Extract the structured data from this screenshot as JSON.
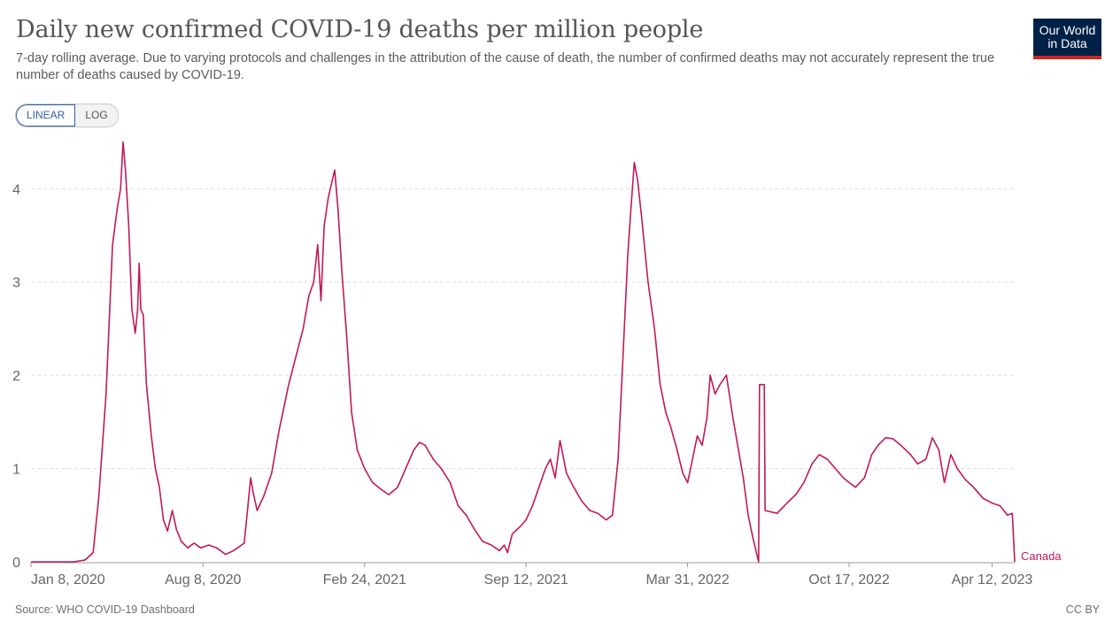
{
  "header": {
    "title": "Daily new confirmed COVID-19 deaths per million people",
    "subtitle": "7-day rolling average. Due to varying protocols and challenges in the attribution of the cause of death, the number of confirmed deaths may not accurately represent the true number of deaths caused by COVID-19.",
    "logo_line1": "Our World",
    "logo_line2": "in Data"
  },
  "controls": {
    "linear_label": "LINEAR",
    "log_label": "LOG",
    "active": "linear"
  },
  "footer": {
    "source": "Source: WHO COVID-19 Dashboard",
    "license": "CC BY"
  },
  "colors": {
    "series": "#c2185b",
    "grid": "#dddddd",
    "axis": "#999999"
  },
  "chart_data": {
    "type": "line",
    "title": "Daily new confirmed COVID-19 deaths per million people",
    "xlabel": "",
    "ylabel": "",
    "ylim": [
      0,
      4.6
    ],
    "xlim": [
      "2020-01-08",
      "2023-05-10"
    ],
    "y_ticks": [
      0,
      1,
      2,
      3,
      4
    ],
    "x_ticks": [
      "2020-01-08",
      "2020-08-08",
      "2021-02-24",
      "2021-09-12",
      "2022-03-31",
      "2022-10-17",
      "2023-04-12"
    ],
    "x_tick_labels": [
      "Jan 8, 2020",
      "Aug 8, 2020",
      "Feb 24, 2021",
      "Sep 12, 2021",
      "Mar 31, 2022",
      "Oct 17, 2022",
      "Apr 12, 2023"
    ],
    "grid": "horizontal dashed",
    "series": [
      {
        "name": "Canada",
        "points": [
          [
            "2020-01-08",
            0
          ],
          [
            "2020-03-01",
            0
          ],
          [
            "2020-03-15",
            0.02
          ],
          [
            "2020-03-25",
            0.1
          ],
          [
            "2020-04-01",
            0.7
          ],
          [
            "2020-04-10",
            1.8
          ],
          [
            "2020-04-18",
            3.4
          ],
          [
            "2020-04-24",
            3.8
          ],
          [
            "2020-04-28",
            4.0
          ],
          [
            "2020-05-01",
            4.5
          ],
          [
            "2020-05-04",
            4.2
          ],
          [
            "2020-05-08",
            3.6
          ],
          [
            "2020-05-12",
            2.7
          ],
          [
            "2020-05-16",
            2.45
          ],
          [
            "2020-05-19",
            2.7
          ],
          [
            "2020-05-21",
            3.2
          ],
          [
            "2020-05-23",
            2.7
          ],
          [
            "2020-05-26",
            2.65
          ],
          [
            "2020-05-30",
            1.9
          ],
          [
            "2020-06-05",
            1.35
          ],
          [
            "2020-06-10",
            1.0
          ],
          [
            "2020-06-15",
            0.8
          ],
          [
            "2020-06-20",
            0.45
          ],
          [
            "2020-06-25",
            0.33
          ],
          [
            "2020-07-01",
            0.55
          ],
          [
            "2020-07-06",
            0.35
          ],
          [
            "2020-07-12",
            0.22
          ],
          [
            "2020-07-20",
            0.15
          ],
          [
            "2020-07-28",
            0.2
          ],
          [
            "2020-08-05",
            0.15
          ],
          [
            "2020-08-15",
            0.18
          ],
          [
            "2020-08-25",
            0.15
          ],
          [
            "2020-09-05",
            0.08
          ],
          [
            "2020-09-15",
            0.12
          ],
          [
            "2020-09-28",
            0.2
          ],
          [
            "2020-10-02",
            0.55
          ],
          [
            "2020-10-06",
            0.9
          ],
          [
            "2020-10-09",
            0.75
          ],
          [
            "2020-10-14",
            0.55
          ],
          [
            "2020-10-22",
            0.7
          ],
          [
            "2020-11-01",
            0.95
          ],
          [
            "2020-11-10",
            1.4
          ],
          [
            "2020-11-22",
            1.9
          ],
          [
            "2020-12-01",
            2.2
          ],
          [
            "2020-12-10",
            2.5
          ],
          [
            "2020-12-17",
            2.85
          ],
          [
            "2020-12-23",
            3.0
          ],
          [
            "2020-12-28",
            3.4
          ],
          [
            "2021-01-01",
            2.8
          ],
          [
            "2021-01-05",
            3.6
          ],
          [
            "2021-01-10",
            3.9
          ],
          [
            "2021-01-14",
            4.05
          ],
          [
            "2021-01-18",
            4.2
          ],
          [
            "2021-01-22",
            3.8
          ],
          [
            "2021-01-27",
            3.1
          ],
          [
            "2021-02-02",
            2.4
          ],
          [
            "2021-02-08",
            1.6
          ],
          [
            "2021-02-15",
            1.2
          ],
          [
            "2021-02-24",
            1.0
          ],
          [
            "2021-03-06",
            0.85
          ],
          [
            "2021-03-16",
            0.78
          ],
          [
            "2021-03-26",
            0.72
          ],
          [
            "2021-04-06",
            0.8
          ],
          [
            "2021-04-16",
            1.0
          ],
          [
            "2021-04-26",
            1.2
          ],
          [
            "2021-05-03",
            1.28
          ],
          [
            "2021-05-10",
            1.25
          ],
          [
            "2021-05-20",
            1.1
          ],
          [
            "2021-05-30",
            1.0
          ],
          [
            "2021-06-10",
            0.85
          ],
          [
            "2021-06-20",
            0.6
          ],
          [
            "2021-06-30",
            0.5
          ],
          [
            "2021-07-10",
            0.35
          ],
          [
            "2021-07-20",
            0.22
          ],
          [
            "2021-07-31",
            0.18
          ],
          [
            "2021-08-10",
            0.12
          ],
          [
            "2021-08-16",
            0.18
          ],
          [
            "2021-08-20",
            0.1
          ],
          [
            "2021-08-26",
            0.3
          ],
          [
            "2021-09-05",
            0.38
          ],
          [
            "2021-09-12",
            0.45
          ],
          [
            "2021-09-20",
            0.6
          ],
          [
            "2021-09-28",
            0.8
          ],
          [
            "2021-10-06",
            1.0
          ],
          [
            "2021-10-12",
            1.1
          ],
          [
            "2021-10-18",
            0.9
          ],
          [
            "2021-10-24",
            1.3
          ],
          [
            "2021-11-01",
            0.95
          ],
          [
            "2021-11-10",
            0.8
          ],
          [
            "2021-11-20",
            0.65
          ],
          [
            "2021-11-30",
            0.55
          ],
          [
            "2021-12-10",
            0.52
          ],
          [
            "2021-12-20",
            0.45
          ],
          [
            "2021-12-28",
            0.5
          ],
          [
            "2022-01-04",
            1.1
          ],
          [
            "2022-01-10",
            2.2
          ],
          [
            "2022-01-16",
            3.3
          ],
          [
            "2022-01-20",
            3.8
          ],
          [
            "2022-01-24",
            4.28
          ],
          [
            "2022-01-28",
            4.1
          ],
          [
            "2022-02-02",
            3.7
          ],
          [
            "2022-02-10",
            3.0
          ],
          [
            "2022-02-18",
            2.5
          ],
          [
            "2022-02-25",
            1.9
          ],
          [
            "2022-03-04",
            1.6
          ],
          [
            "2022-03-10",
            1.45
          ],
          [
            "2022-03-18",
            1.2
          ],
          [
            "2022-03-25",
            0.95
          ],
          [
            "2022-03-31",
            0.85
          ],
          [
            "2022-04-06",
            1.1
          ],
          [
            "2022-04-12",
            1.35
          ],
          [
            "2022-04-18",
            1.25
          ],
          [
            "2022-04-24",
            1.55
          ],
          [
            "2022-04-28",
            2.0
          ],
          [
            "2022-05-04",
            1.8
          ],
          [
            "2022-05-10",
            1.9
          ],
          [
            "2022-05-18",
            2.0
          ],
          [
            "2022-05-26",
            1.55
          ],
          [
            "2022-06-02",
            1.2
          ],
          [
            "2022-06-08",
            0.9
          ],
          [
            "2022-06-14",
            0.5
          ],
          [
            "2022-06-20",
            0.25
          ],
          [
            "2022-06-27",
            0.0
          ],
          [
            "2022-06-28",
            1.9
          ],
          [
            "2022-07-04",
            1.9
          ],
          [
            "2022-07-05",
            0.55
          ],
          [
            "2022-07-20",
            0.52
          ],
          [
            "2022-08-01",
            0.63
          ],
          [
            "2022-08-12",
            0.72
          ],
          [
            "2022-08-22",
            0.85
          ],
          [
            "2022-09-01",
            1.05
          ],
          [
            "2022-09-10",
            1.15
          ],
          [
            "2022-09-20",
            1.1
          ],
          [
            "2022-09-30",
            1.0
          ],
          [
            "2022-10-10",
            0.9
          ],
          [
            "2022-10-17",
            0.85
          ],
          [
            "2022-10-25",
            0.8
          ],
          [
            "2022-11-05",
            0.9
          ],
          [
            "2022-11-14",
            1.15
          ],
          [
            "2022-11-22",
            1.25
          ],
          [
            "2022-12-01",
            1.33
          ],
          [
            "2022-12-10",
            1.32
          ],
          [
            "2022-12-20",
            1.25
          ],
          [
            "2023-01-01",
            1.15
          ],
          [
            "2023-01-10",
            1.05
          ],
          [
            "2023-01-20",
            1.1
          ],
          [
            "2023-01-28",
            1.33
          ],
          [
            "2023-02-05",
            1.2
          ],
          [
            "2023-02-12",
            0.85
          ],
          [
            "2023-02-20",
            1.15
          ],
          [
            "2023-02-28",
            1.0
          ],
          [
            "2023-03-10",
            0.88
          ],
          [
            "2023-03-20",
            0.8
          ],
          [
            "2023-04-01",
            0.68
          ],
          [
            "2023-04-12",
            0.63
          ],
          [
            "2023-04-22",
            0.6
          ],
          [
            "2023-05-01",
            0.5
          ],
          [
            "2023-05-07",
            0.52
          ],
          [
            "2023-05-10",
            0.0
          ]
        ]
      }
    ]
  }
}
